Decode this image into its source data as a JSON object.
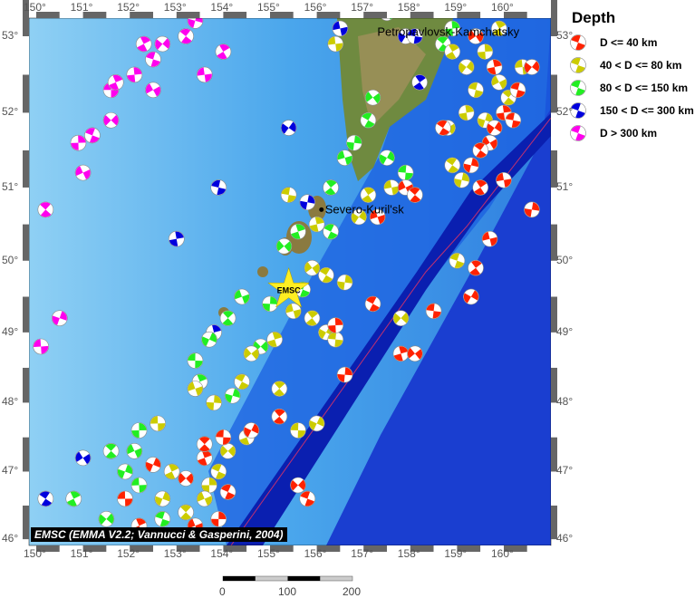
{
  "map": {
    "lon_range": [
      150,
      161
    ],
    "lat_range": [
      46,
      53.3
    ],
    "lon_ticks": [
      "150°",
      "151°",
      "152°",
      "153°",
      "154°",
      "155°",
      "156°",
      "157°",
      "158°",
      "159°",
      "160°"
    ],
    "lat_ticks": [
      "53°",
      "52°",
      "51°",
      "50°",
      "49°",
      "48°",
      "47°",
      "46°"
    ],
    "places": [
      {
        "name": "Severo-Kuril'sk",
        "lon": 156.1,
        "lat": 50.7
      },
      {
        "name": "Petropavlovsk-Kamchatsky",
        "lon": 158.65,
        "lat": 53.05
      }
    ],
    "epicenter": {
      "label": "EMSC",
      "lon": 155.4,
      "lat": 49.6,
      "color": "#ffee22"
    },
    "credit": "EMSC (EMMA V2.2; Vannucci & Gasperini, 2004)",
    "scale": {
      "labels": [
        "0",
        "100",
        "200"
      ],
      "unit_max_km": 200
    }
  },
  "legend": {
    "title": "Depth",
    "items": [
      {
        "label": "D <= 40 km",
        "color": "#ff2200"
      },
      {
        "label": "40 < D <= 80 km",
        "color": "#cccc00"
      },
      {
        "label": "80 < D <= 150 km",
        "color": "#22ee22"
      },
      {
        "label": "150 < D <= 300 km",
        "color": "#0000dd"
      },
      {
        "label": "D > 300 km",
        "color": "#ff00ee"
      }
    ]
  },
  "events": [
    [
      151.6,
      52.3,
      4
    ],
    [
      151.7,
      52.4,
      4
    ],
    [
      151.6,
      51.9,
      4
    ],
    [
      151.2,
      51.7,
      4
    ],
    [
      150.9,
      51.6,
      4
    ],
    [
      151.0,
      51.2,
      4
    ],
    [
      150.2,
      50.7,
      4
    ],
    [
      150.5,
      49.2,
      4
    ],
    [
      150.1,
      48.8,
      4
    ],
    [
      152.3,
      52.9,
      4
    ],
    [
      152.7,
      52.9,
      4
    ],
    [
      152.5,
      52.7,
      4
    ],
    [
      152.1,
      52.5,
      4
    ],
    [
      152.5,
      52.3,
      4
    ],
    [
      153.2,
      53.0,
      4
    ],
    [
      153.4,
      53.2,
      4
    ],
    [
      153.6,
      52.5,
      4
    ],
    [
      154.0,
      52.8,
      4
    ],
    [
      155.4,
      51.8,
      3
    ],
    [
      153.9,
      51.0,
      3
    ],
    [
      153.0,
      50.3,
      3
    ],
    [
      151.0,
      47.2,
      3
    ],
    [
      150.2,
      46.6,
      3
    ],
    [
      155.8,
      50.8,
      3
    ],
    [
      156.5,
      53.1,
      3
    ],
    [
      158.2,
      52.4,
      3
    ],
    [
      157.9,
      53.0,
      3
    ],
    [
      158.1,
      53.0,
      3
    ],
    [
      153.8,
      49.0,
      3
    ],
    [
      157.2,
      52.2,
      2
    ],
    [
      157.1,
      51.9,
      2
    ],
    [
      156.8,
      51.6,
      2
    ],
    [
      156.6,
      51.4,
      2
    ],
    [
      156.3,
      51.0,
      2
    ],
    [
      157.5,
      51.4,
      2
    ],
    [
      157.9,
      51.2,
      2
    ],
    [
      155.6,
      50.4,
      2
    ],
    [
      155.3,
      50.2,
      2
    ],
    [
      156.3,
      50.4,
      2
    ],
    [
      155.0,
      49.4,
      2
    ],
    [
      154.4,
      49.5,
      2
    ],
    [
      154.1,
      49.2,
      2
    ],
    [
      153.7,
      48.9,
      2
    ],
    [
      153.4,
      48.6,
      2
    ],
    [
      153.5,
      48.3,
      2
    ],
    [
      154.8,
      48.8,
      2
    ],
    [
      155.7,
      49.6,
      2
    ],
    [
      152.2,
      47.6,
      2
    ],
    [
      152.1,
      47.3,
      2
    ],
    [
      151.6,
      47.3,
      2
    ],
    [
      151.9,
      47.0,
      2
    ],
    [
      152.2,
      46.8,
      2
    ],
    [
      150.8,
      46.6,
      2
    ],
    [
      151.5,
      46.3,
      2
    ],
    [
      152.7,
      46.3,
      2
    ],
    [
      158.9,
      53.1,
      2
    ],
    [
      157.5,
      53.3,
      2
    ],
    [
      158.7,
      52.9,
      2
    ],
    [
      154.2,
      48.1,
      2
    ],
    [
      156.4,
      52.9,
      1
    ],
    [
      158.9,
      52.8,
      1
    ],
    [
      159.2,
      52.6,
      1
    ],
    [
      159.4,
      52.3,
      1
    ],
    [
      159.2,
      52.0,
      1
    ],
    [
      158.8,
      51.8,
      1
    ],
    [
      158.9,
      51.3,
      1
    ],
    [
      159.1,
      51.1,
      1
    ],
    [
      157.6,
      51.0,
      1
    ],
    [
      157.1,
      50.9,
      1
    ],
    [
      156.9,
      50.6,
      1
    ],
    [
      155.4,
      50.9,
      1
    ],
    [
      156.0,
      50.5,
      1
    ],
    [
      155.9,
      49.9,
      1
    ],
    [
      156.2,
      49.8,
      1
    ],
    [
      156.6,
      49.7,
      1
    ],
    [
      155.5,
      49.3,
      1
    ],
    [
      155.9,
      49.2,
      1
    ],
    [
      156.2,
      49.0,
      1
    ],
    [
      156.4,
      48.9,
      1
    ],
    [
      155.1,
      48.9,
      1
    ],
    [
      154.6,
      48.7,
      1
    ],
    [
      154.4,
      48.3,
      1
    ],
    [
      153.8,
      48.0,
      1
    ],
    [
      153.4,
      48.2,
      1
    ],
    [
      155.2,
      48.2,
      1
    ],
    [
      156.0,
      47.7,
      1
    ],
    [
      155.6,
      47.6,
      1
    ],
    [
      154.5,
      47.5,
      1
    ],
    [
      154.1,
      47.3,
      1
    ],
    [
      153.9,
      47.0,
      1
    ],
    [
      153.7,
      46.8,
      1
    ],
    [
      153.6,
      46.6,
      1
    ],
    [
      153.2,
      46.4,
      1
    ],
    [
      152.7,
      46.6,
      1
    ],
    [
      152.6,
      47.7,
      1
    ],
    [
      152.9,
      47.0,
      1
    ],
    [
      157.8,
      49.2,
      1
    ],
    [
      159.0,
      50.0,
      1
    ],
    [
      159.6,
      52.8,
      1
    ],
    [
      159.9,
      52.4,
      1
    ],
    [
      160.1,
      52.2,
      1
    ],
    [
      159.6,
      51.9,
      1
    ],
    [
      160.4,
      52.6,
      1
    ],
    [
      159.9,
      53.1,
      1
    ],
    [
      160.6,
      52.6,
      0
    ],
    [
      160.3,
      52.3,
      0
    ],
    [
      160.0,
      52.0,
      0
    ],
    [
      159.7,
      51.6,
      0
    ],
    [
      159.5,
      51.5,
      0
    ],
    [
      159.3,
      51.3,
      0
    ],
    [
      160.0,
      51.1,
      0
    ],
    [
      159.5,
      51.0,
      0
    ],
    [
      159.8,
      51.8,
      0
    ],
    [
      160.2,
      51.9,
      0
    ],
    [
      159.8,
      52.6,
      0
    ],
    [
      159.4,
      53.0,
      0
    ],
    [
      158.7,
      51.8,
      0
    ],
    [
      160.6,
      50.7,
      0
    ],
    [
      159.7,
      50.3,
      0
    ],
    [
      159.4,
      49.9,
      0
    ],
    [
      159.3,
      49.5,
      0
    ],
    [
      158.5,
      49.3,
      0
    ],
    [
      157.8,
      48.7,
      0
    ],
    [
      158.1,
      48.7,
      0
    ],
    [
      157.2,
      49.4,
      0
    ],
    [
      156.6,
      48.4,
      0
    ],
    [
      157.3,
      50.6,
      0
    ],
    [
      155.2,
      47.8,
      0
    ],
    [
      154.6,
      47.6,
      0
    ],
    [
      154.0,
      47.5,
      0
    ],
    [
      153.6,
      47.2,
      0
    ],
    [
      153.2,
      46.9,
      0
    ],
    [
      154.1,
      46.7,
      0
    ],
    [
      153.9,
      46.3,
      0
    ],
    [
      153.4,
      46.2,
      0
    ],
    [
      153.6,
      47.4,
      0
    ],
    [
      152.5,
      47.1,
      0
    ],
    [
      151.9,
      46.6,
      0
    ],
    [
      152.2,
      46.2,
      0
    ],
    [
      155.6,
      46.8,
      0
    ],
    [
      155.8,
      46.6,
      0
    ],
    [
      156.4,
      49.1,
      0
    ],
    [
      157.9,
      51.0,
      0
    ],
    [
      158.1,
      50.9,
      0
    ]
  ]
}
